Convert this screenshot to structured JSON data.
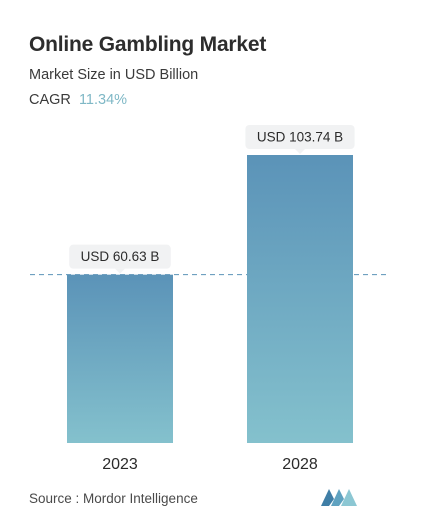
{
  "header": {
    "title": "Online Gambling Market",
    "subtitle": "Market Size in USD Billion",
    "cagr_label": "CAGR",
    "cagr_value": "11.34%"
  },
  "footer": {
    "source": "Source : Mordor Intelligence"
  },
  "colors": {
    "bar_top": "#5b93b8",
    "bar_bottom": "#84c1cd",
    "accent": "#7fb8c6",
    "label_bg": "#f1f2f3",
    "dashed_line": "#5b93b8"
  },
  "chart_data": {
    "type": "bar",
    "title": "Online Gambling Market",
    "subtitle": "Market Size in USD Billion",
    "categories": [
      "2023",
      "2028"
    ],
    "values": [
      60.63,
      103.74
    ],
    "data_labels": [
      "USD 60.63 B",
      "USD 103.74 B"
    ],
    "reference_line": 60.63,
    "ylim": [
      0,
      103.74
    ],
    "grid": false,
    "legend": "none",
    "yaxis_visible": false
  }
}
